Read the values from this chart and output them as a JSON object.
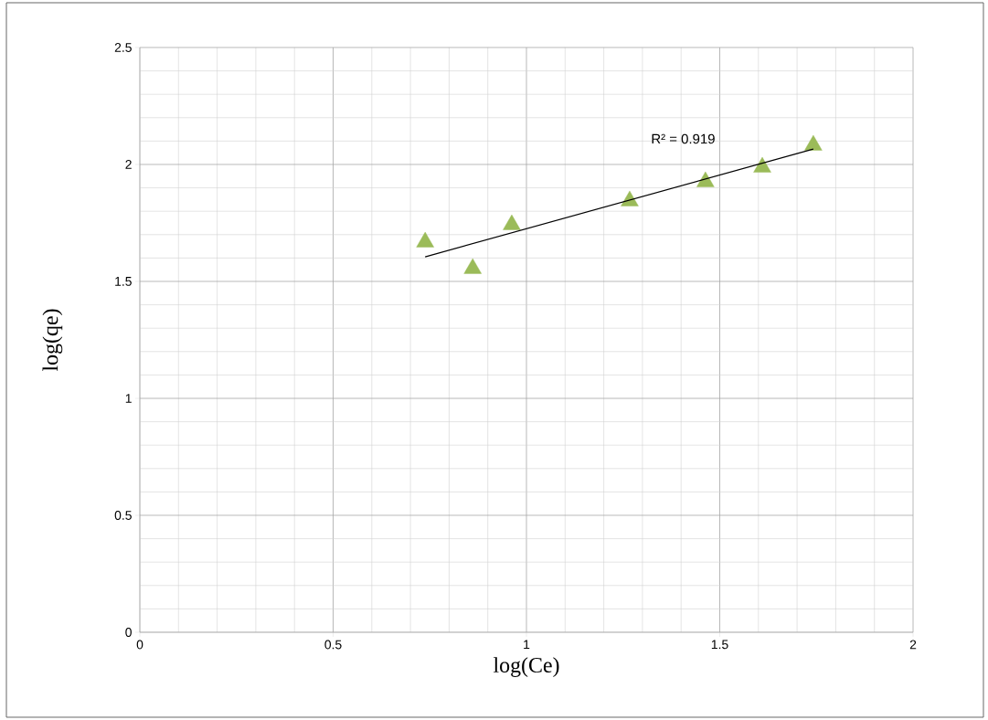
{
  "chart_data": {
    "type": "scatter",
    "xlabel": "log(Ce)",
    "ylabel": "log(qe)",
    "xlim": [
      0,
      2
    ],
    "ylim": [
      0,
      2.5
    ],
    "xticks": [
      0,
      0.5,
      1,
      1.5,
      2
    ],
    "yticks": [
      0,
      0.5,
      1,
      1.5,
      2,
      2.5
    ],
    "grid": true,
    "marker": "triangle",
    "series": [
      {
        "color": "#9bbb59",
        "x": [
          0.738,
          0.861,
          0.962,
          1.267,
          1.463,
          1.61,
          1.742
        ],
        "values": [
          1.668,
          1.555,
          1.742,
          1.844,
          1.926,
          1.988,
          2.082
        ]
      },
      {
        "type": "line",
        "color": "#000000",
        "marker": "none",
        "x": [
          0.738,
          1.742
        ],
        "values": [
          1.605,
          2.066
        ]
      }
    ],
    "annotations": [
      "R² = 0.919"
    ]
  }
}
